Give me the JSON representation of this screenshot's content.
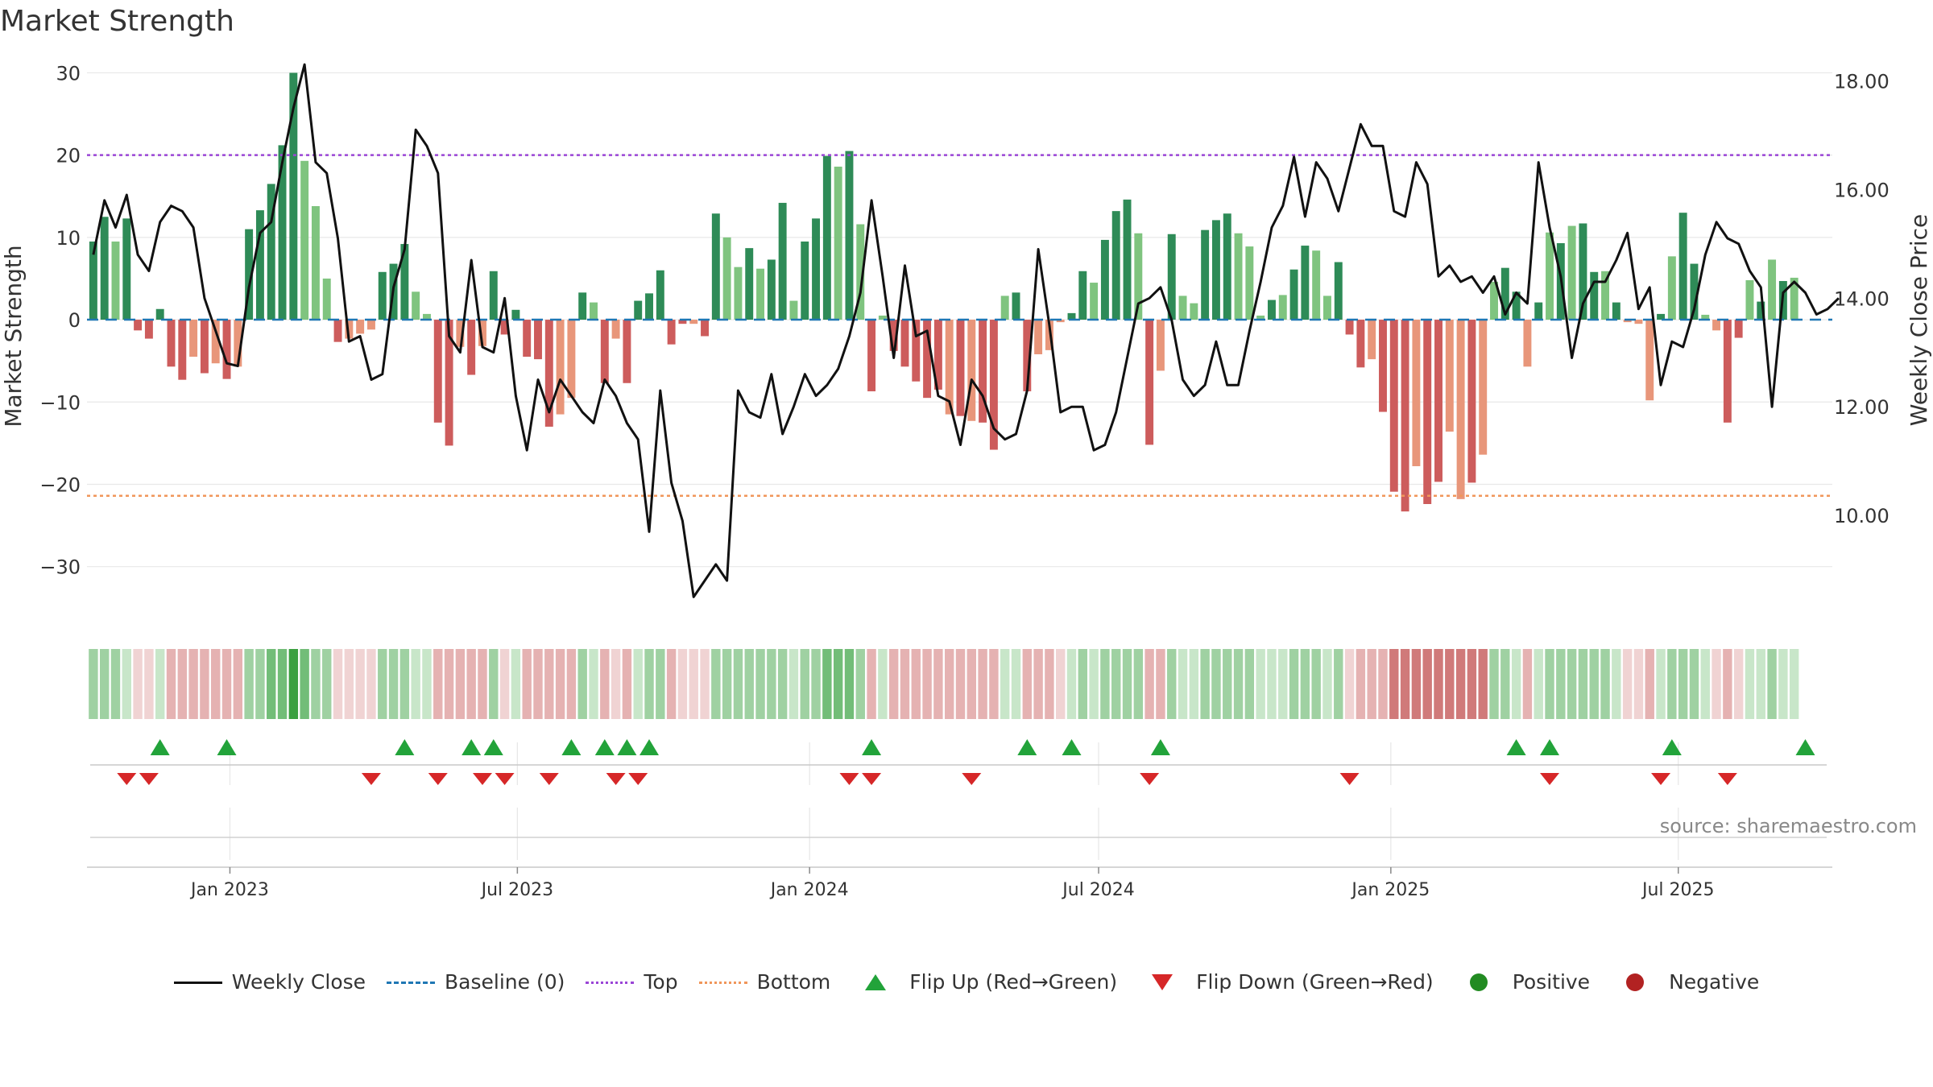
{
  "colors": {
    "pos_strong": "#2e8b57",
    "pos_light": "#7fc47f",
    "neg_strong": "#cd5c5c",
    "neg_light": "#e8967a",
    "line": "#111111",
    "top": "#9a45d6",
    "bottom": "#f0965a",
    "baseline": "#1f77b4",
    "flip_up": "#22a33a",
    "flip_down": "#d62728",
    "positive": "#228b22",
    "negative": "#b22222"
  },
  "chart_data": {
    "type": "bar",
    "title": "Market Strength",
    "source": "source: sharemaestro.com",
    "ylabel_left": "Market Strength",
    "ylabel_right": "Weekly Close Price",
    "ylim_left": [
      -36,
      32
    ],
    "yticks_left": [
      30,
      20,
      10,
      0,
      -10,
      -20,
      -30
    ],
    "ytick_labels_left": [
      "30",
      "20",
      "10",
      "0",
      "−10",
      "−20",
      "−30"
    ],
    "ylim_right": [
      8.15,
      18.45
    ],
    "yticks_right": [
      18,
      16,
      14,
      12,
      10
    ],
    "ytick_labels_right": [
      "18.00",
      "16.00",
      "14.00",
      "12.00",
      "10.00"
    ],
    "top_level": 20,
    "bottom_level": -21.4,
    "baseline": 0,
    "x_start": "2022-10-07",
    "x_step_days": 7,
    "x_min": "2022-10-03",
    "x_max": "2025-10-06",
    "x_ticks": [
      "Jan 2023",
      "Jul 2023",
      "Jan 2024",
      "Jul 2024",
      "Jan 2025",
      "Jul 2025"
    ],
    "x_tick_dates": [
      "2023-01-01",
      "2023-07-01",
      "2024-01-01",
      "2024-07-01",
      "2025-01-01",
      "2025-07-01"
    ],
    "strength": [
      9.5,
      12.5,
      9.5,
      12.3,
      -1.3,
      -2.3,
      1.3,
      -5.7,
      -7.3,
      -4.5,
      -6.5,
      -5.3,
      -7.2,
      -5.7,
      11,
      13.3,
      16.5,
      21.2,
      30,
      19.3,
      13.8,
      5,
      -2.7,
      -2.3,
      -1.7,
      -1.2,
      5.8,
      6.8,
      9.2,
      3.4,
      0.7,
      -12.5,
      -15.3,
      -3.3,
      -6.7,
      -3.2,
      5.9,
      -1.8,
      1.2,
      -4.5,
      -4.8,
      -13,
      -11.5,
      -9.5,
      3.3,
      2.1,
      -7.7,
      -2.3,
      -7.7,
      2.3,
      3.2,
      6,
      -3,
      -0.5,
      -0.5,
      -2,
      12.9,
      10,
      6.4,
      8.7,
      6.2,
      7.3,
      14.2,
      2.3,
      9.5,
      12.3,
      19.9,
      18.6,
      20.5,
      11.6,
      -8.7,
      0.5,
      -3.8,
      -5.7,
      -7.5,
      -9.5,
      -8.5,
      -11.5,
      -11.7,
      -12.3,
      -12.5,
      -15.8,
      2.9,
      3.3,
      -8.7,
      -4.2,
      -3.7,
      -0.3,
      0.8,
      5.9,
      4.5,
      9.7,
      13.2,
      14.6,
      10.5,
      -15.2,
      -6.2,
      10.4,
      2.9,
      2,
      10.9,
      12.1,
      12.9,
      10.5,
      8.9,
      0.5,
      2.4,
      3,
      6.1,
      9,
      8.4,
      2.9,
      7,
      -1.8,
      -5.8,
      -4.8,
      -11.2,
      -20.9,
      -23.3,
      -17.8,
      -22.4,
      -19.7,
      -13.6,
      -21.8,
      -19.8,
      -16.4,
      4.6,
      6.3,
      3.4,
      -5.7,
      2.1,
      10.6,
      9.3,
      11.4,
      11.7,
      5.8,
      5.9,
      2.1,
      -0.3,
      -0.5,
      -9.8,
      0.7,
      7.7,
      13,
      6.8,
      0.6,
      -1.3,
      -12.5,
      -2.2,
      4.8,
      2.2,
      7.3,
      4.7,
      5.1
    ],
    "strength_style": [
      "s",
      "s",
      "l",
      "s",
      "s",
      "s",
      "s",
      "s",
      "s",
      "l",
      "s",
      "l",
      "s",
      "l",
      "s",
      "s",
      "s",
      "s",
      "s",
      "l",
      "l",
      "l",
      "s",
      "l",
      "l",
      "l",
      "s",
      "s",
      "s",
      "l",
      "l",
      "s",
      "s",
      "l",
      "s",
      "l",
      "s",
      "s",
      "s",
      "s",
      "s",
      "s",
      "l",
      "l",
      "s",
      "l",
      "s",
      "l",
      "s",
      "s",
      "s",
      "s",
      "s",
      "s",
      "l",
      "s",
      "s",
      "l",
      "l",
      "s",
      "l",
      "s",
      "s",
      "l",
      "s",
      "s",
      "s",
      "l",
      "s",
      "l",
      "s",
      "l",
      "s",
      "s",
      "s",
      "s",
      "s",
      "l",
      "s",
      "l",
      "s",
      "s",
      "l",
      "s",
      "s",
      "l",
      "l",
      "l",
      "s",
      "s",
      "l",
      "s",
      "s",
      "s",
      "l",
      "s",
      "l",
      "s",
      "l",
      "l",
      "s",
      "s",
      "s",
      "l",
      "l",
      "l",
      "s",
      "l",
      "s",
      "s",
      "l",
      "l",
      "s",
      "s",
      "s",
      "l",
      "s",
      "s",
      "s",
      "l",
      "s",
      "s",
      "l",
      "l",
      "s",
      "l",
      "l",
      "s",
      "s",
      "l",
      "s",
      "l",
      "s",
      "l",
      "s",
      "s",
      "l",
      "s",
      "l",
      "l",
      "l",
      "s",
      "l",
      "s",
      "s",
      "l",
      "l",
      "s",
      "s",
      "l",
      "s",
      "l",
      "s",
      "l",
      "s"
    ],
    "weekly_close": [
      14.8,
      15.8,
      15.3,
      15.9,
      14.8,
      14.5,
      15.4,
      15.7,
      15.6,
      15.3,
      14,
      13.4,
      12.8,
      12.75,
      14.2,
      15.2,
      15.4,
      16.5,
      17.5,
      18.3,
      16.5,
      16.3,
      15.1,
      13.2,
      13.3,
      12.5,
      12.6,
      14.2,
      14.9,
      17.1,
      16.8,
      16.3,
      13.3,
      13,
      14.7,
      13.1,
      13,
      14,
      12.2,
      11.2,
      12.5,
      11.9,
      12.5,
      12.2,
      11.9,
      11.7,
      12.5,
      12.2,
      11.7,
      11.4,
      9.7,
      12.3,
      10.6,
      9.9,
      8.5,
      8.8,
      9.1,
      8.8,
      12.3,
      11.9,
      11.8,
      12.6,
      11.5,
      12,
      12.6,
      12.2,
      12.4,
      12.7,
      13.3,
      14.1,
      15.8,
      14.4,
      12.9,
      14.6,
      13.3,
      13.4,
      12.2,
      12.1,
      11.3,
      12.5,
      12.2,
      11.6,
      11.4,
      11.5,
      12.3,
      14.9,
      13.5,
      11.9,
      12,
      12,
      11.2,
      11.3,
      11.9,
      12.9,
      13.9,
      14,
      14.2,
      13.6,
      12.5,
      12.2,
      12.4,
      13.2,
      12.4,
      12.4,
      13.4,
      14.3,
      15.3,
      15.7,
      16.6,
      15.5,
      16.5,
      16.2,
      15.6,
      16.4,
      17.2,
      16.8,
      16.8,
      15.6,
      15.5,
      16.5,
      16.1,
      14.4,
      14.6,
      14.3,
      14.4,
      14.1,
      14.4,
      13.7,
      14.1,
      13.9,
      16.5,
      15.3,
      14.4,
      12.9,
      13.9,
      14.3,
      14.3,
      14.7,
      15.2,
      13.8,
      14.2,
      12.4,
      13.2,
      13.1,
      13.8,
      14.8,
      15.4,
      15.1,
      15,
      14.5,
      14.2,
      12,
      14.1,
      14.3,
      14.1,
      13.7,
      13.8,
      14
    ],
    "heat_levels": [
      2,
      2,
      2,
      1,
      -1,
      -1,
      1,
      -2,
      -2,
      -2,
      -2,
      -2,
      -2,
      -2,
      2,
      2,
      3,
      3,
      4,
      3,
      2,
      2,
      -1,
      -1,
      -1,
      -1,
      2,
      2,
      2,
      1,
      1,
      -2,
      -2,
      -2,
      -2,
      -2,
      2,
      -1,
      1,
      -2,
      -2,
      -2,
      -2,
      -2,
      2,
      1,
      -2,
      -1,
      -2,
      1,
      2,
      2,
      -2,
      -1,
      -1,
      -1,
      2,
      2,
      2,
      2,
      2,
      2,
      2,
      1,
      2,
      2,
      3,
      3,
      3,
      2,
      -2,
      1,
      -2,
      -2,
      -2,
      -2,
      -2,
      -2,
      -2,
      -2,
      -2,
      -2,
      1,
      1,
      -2,
      -2,
      -2,
      -1,
      1,
      2,
      1,
      2,
      2,
      2,
      2,
      -2,
      -2,
      2,
      1,
      1,
      2,
      2,
      2,
      2,
      2,
      1,
      1,
      1,
      2,
      2,
      2,
      1,
      2,
      -1,
      -2,
      -2,
      -2,
      -3,
      -3,
      -3,
      -3,
      -3,
      -3,
      -3,
      -3,
      -3,
      2,
      2,
      1,
      -2,
      1,
      2,
      2,
      2,
      2,
      2,
      2,
      1,
      -1,
      -1,
      -2,
      1,
      2,
      2,
      2,
      1,
      -1,
      -2,
      -1,
      1,
      1,
      2,
      1,
      1
    ],
    "flip_up": [
      "2022-11-18",
      "2022-12-30",
      "2023-04-21",
      "2023-06-02",
      "2023-06-16",
      "2023-08-04",
      "2023-08-25",
      "2023-09-08",
      "2023-09-22",
      "2024-02-09",
      "2024-05-17",
      "2024-06-14",
      "2024-08-09",
      "2025-03-21",
      "2025-04-11",
      "2025-06-27",
      "2025-09-19"
    ],
    "flip_down": [
      "2022-10-28",
      "2022-11-11",
      "2023-03-31",
      "2023-05-12",
      "2023-06-09",
      "2023-06-23",
      "2023-07-21",
      "2023-09-01",
      "2023-09-15",
      "2024-01-26",
      "2024-02-09",
      "2024-04-12",
      "2024-08-02",
      "2024-12-06",
      "2025-04-11",
      "2025-06-20",
      "2025-08-01"
    ]
  },
  "legend": {
    "weekly_close": "Weekly Close",
    "baseline": "Baseline (0)",
    "top": "Top",
    "bottom": "Bottom",
    "flip_up": "Flip Up (Red→Green)",
    "flip_down": "Flip Down (Green→Red)",
    "positive": "Positive",
    "negative": "Negative"
  }
}
